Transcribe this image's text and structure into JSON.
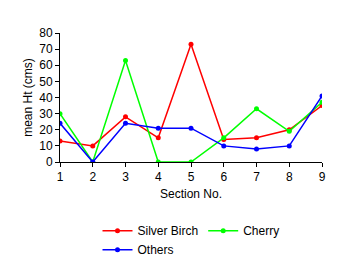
{
  "chart_data": {
    "type": "line",
    "x_label": "Section No.",
    "y_label": "mean Ht (cms)",
    "x": [
      1,
      2,
      3,
      4,
      5,
      6,
      7,
      8,
      9
    ],
    "series": [
      {
        "name": "Silver Birch",
        "color": "#ff0000",
        "values": [
          13,
          10,
          28,
          15,
          73,
          14,
          15,
          20,
          35
        ]
      },
      {
        "name": "Cherry",
        "color": "#00ff00",
        "values": [
          30,
          0,
          63,
          0,
          0,
          15,
          33,
          19,
          37
        ]
      },
      {
        "name": "Others",
        "color": "#0000ff",
        "values": [
          24,
          0,
          24,
          21,
          21,
          10,
          8,
          10,
          41
        ]
      }
    ],
    "xlim": [
      1,
      9
    ],
    "xticks": [
      1,
      2,
      3,
      4,
      5,
      6,
      7,
      8,
      9
    ],
    "ylim": [
      0,
      80
    ],
    "yticks": [
      0,
      10,
      20,
      30,
      40,
      50,
      60,
      70,
      80
    ],
    "grid": false,
    "legend": "bottom",
    "marker": "circle"
  }
}
